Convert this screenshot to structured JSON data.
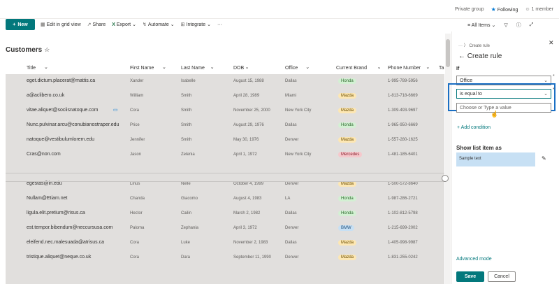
{
  "topbar": {
    "group": "Private group",
    "following": "Following",
    "members": "1 member"
  },
  "commands": {
    "new": "New",
    "grid": "Edit in grid view",
    "share": "Share",
    "export": "Export",
    "automate": "Automate",
    "integrate": "Integrate",
    "more": "···",
    "view": "All Items"
  },
  "list": {
    "title": "Customers"
  },
  "columns": [
    "Title",
    "First Name",
    "Last Name",
    "DOB",
    "Office",
    "Current Brand",
    "Phone Number",
    "Ta"
  ],
  "rows": [
    {
      "title": "eget.dictum.placerat@mattis.ca",
      "first": "Xander",
      "last": "Isabelle",
      "dob": "August 15, 1988",
      "office": "Dallas",
      "brand": "Honda",
      "phone": "1-995-789-5956"
    },
    {
      "title": "a@aclibero.co.uk",
      "first": "William",
      "last": "Smith",
      "dob": "April 28, 1989",
      "office": "Miami",
      "brand": "Mazda",
      "phone": "1-813-718-6669"
    },
    {
      "title": "vitae.aliquet@sociisnatoque.com",
      "first": "Cora",
      "last": "Smith",
      "dob": "November 25, 2000",
      "office": "New York City",
      "brand": "Mazda",
      "phone": "1-309-493-9697"
    },
    {
      "title": "Nunc.pulvinar.arcu@conubianostraper.edu",
      "first": "Price",
      "last": "Smith",
      "dob": "August 29, 1976",
      "office": "Dallas",
      "brand": "Honda",
      "phone": "1-965-950-6669"
    },
    {
      "title": "natoque@vestibulumlorem.edu",
      "first": "Jennifer",
      "last": "Smith",
      "dob": "May 30, 1976",
      "office": "Denver",
      "brand": "Mazda",
      "phone": "1-557-280-1625"
    },
    {
      "title": "Cras@non.com",
      "first": "Jason",
      "last": "Zelenia",
      "dob": "April 1, 1972",
      "office": "New York City",
      "brand": "Mercedes",
      "phone": "1-481-185-6401"
    },
    {
      "title": "egestas@in.edu",
      "first": "Linus",
      "last": "Nelle",
      "dob": "October 4, 1999",
      "office": "Denver",
      "brand": "Mazda",
      "phone": "1-500-572-8640"
    },
    {
      "title": "Nullam@Etiam.net",
      "first": "Chanda",
      "last": "Giacomo",
      "dob": "August 4, 1983",
      "office": "LA",
      "brand": "Honda",
      "phone": "1-987-286-2721"
    },
    {
      "title": "ligula.elit.pretium@risus.ca",
      "first": "Hector",
      "last": "Cailin",
      "dob": "March 2, 1982",
      "office": "Dallas",
      "brand": "Honda",
      "phone": "1-102-812-5798"
    },
    {
      "title": "est.tempor.bibendum@neccursusa.com",
      "first": "Paloma",
      "last": "Zephania",
      "dob": "April 3, 1972",
      "office": "Denver",
      "brand": "BMW",
      "phone": "1-215-699-2002"
    },
    {
      "title": "eleifend.nec.malesuada@atrisus.ca",
      "first": "Cora",
      "last": "Luke",
      "dob": "November 2, 1983",
      "office": "Dallas",
      "brand": "Mazda",
      "phone": "1-405-998-9987"
    },
    {
      "title": "tristique.aliquet@neque.co.uk",
      "first": "Cora",
      "last": "Dara",
      "dob": "September 11, 1990",
      "office": "Denver",
      "brand": "Mazda",
      "phone": "1-831-255-0242"
    }
  ],
  "brand_colors": {
    "Honda": {
      "bg": "#d3f0d3",
      "fg": "#2f6b2f"
    },
    "Mazda": {
      "bg": "#fde7b3",
      "fg": "#6b4e00"
    },
    "Mercedes": {
      "bg": "#f6c8cc",
      "fg": "#8a2330"
    },
    "BMW": {
      "bg": "#c7e0f4",
      "fg": "#1f4e79"
    }
  },
  "panel": {
    "breadcrumb": "··· 〉 Create rule",
    "title": "Create rule",
    "if_label": "If",
    "field1": "Office",
    "field2": "is equal to",
    "field3": "Choose or Type a value",
    "add_condition": "+ Add condition",
    "show_label": "Show list item as",
    "sample": "Sample text",
    "advanced": "Advanced mode",
    "save": "Save",
    "cancel": "Cancel"
  }
}
